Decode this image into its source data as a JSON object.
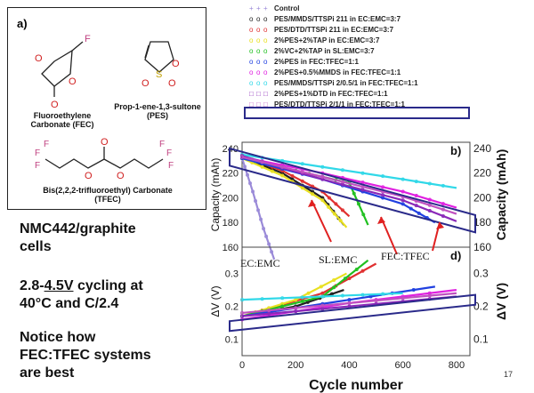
{
  "panel_a": {
    "label": "a)",
    "molecules": [
      {
        "name": "Fluoroethylene Carbonate (FEC)",
        "line1": "Fluoroethylene",
        "line2": "Carbonate (FEC)"
      },
      {
        "name": "Prop-1-ene-1,3-sultone (PES)",
        "line1": "Prop-1-ene-1,3-sultone",
        "line2": "(PES)"
      },
      {
        "name": "Bis(2,2,2-trifluoroethyl) Carbonate (TFEC)",
        "line1": "Bis(2,2,2-trifluoroethyl) Carbonate",
        "line2": "(TFEC)"
      }
    ],
    "atoms": {
      "F": "F",
      "O": "O",
      "S": "S"
    }
  },
  "bullets": {
    "cells_1": "NMC442/graphite",
    "cells_2": "cells",
    "cycling_prefix": "2.8-",
    "cycling_voltage": "4.5V",
    "cycling_suffix": " cycling at",
    "cycling_2": "40°C and C/2.4",
    "notice_1": "Notice how",
    "notice_2": "FEC:TFEC systems",
    "notice_3": "are best"
  },
  "slide_number": "17",
  "chart_data": [
    {
      "type": "line",
      "panel_label": "b)",
      "ylabel_left": "Capacity (mAh)",
      "ylabel_right": "Capacity (mAh)",
      "xlim": [
        0,
        850
      ],
      "ylim": [
        160,
        245
      ],
      "x_ticks": [
        0,
        200,
        400,
        600,
        800
      ],
      "y_ticks": [
        160,
        180,
        200,
        220,
        240
      ],
      "series": [
        {
          "name": "Control",
          "color": "#9a8ad8",
          "x": [
            0,
            40,
            80,
            120
          ],
          "values": [
            232,
            205,
            175,
            150
          ]
        },
        {
          "name": "PES/MMDS/TTSPi 211 in EC:EMC=3:7",
          "color": "#222222",
          "x": [
            0,
            150,
            300,
            380
          ],
          "values": [
            233,
            220,
            200,
            178
          ]
        },
        {
          "name": "PES/DTD/TTSPi 211 in EC:EMC=3:7",
          "color": "#e03030",
          "x": [
            0,
            150,
            300,
            400
          ],
          "values": [
            234,
            222,
            205,
            185
          ]
        },
        {
          "name": "2%PES+2%TAP in EC:EMC=3:7",
          "color": "#e8e020",
          "x": [
            0,
            150,
            300,
            390
          ],
          "values": [
            232,
            218,
            198,
            176
          ]
        },
        {
          "name": "2%VC+2%TAP in SL:EMC=3:7",
          "color": "#20c020",
          "x": [
            0,
            200,
            400,
            470
          ],
          "values": [
            232,
            222,
            212,
            178
          ]
        },
        {
          "name": "2%PES in FEC:TFEC=1:1",
          "color": "#2040e0",
          "x": [
            0,
            300,
            600,
            720
          ],
          "values": [
            232,
            215,
            195,
            180
          ]
        },
        {
          "name": "2%PES+0.5%MMDS in FEC:TFEC=1:1",
          "color": "#e020e0",
          "x": [
            0,
            300,
            600,
            800
          ],
          "values": [
            233,
            220,
            205,
            192
          ]
        },
        {
          "name": "PES/MMDS/TTSPi 2/0.5/1 in FEC:TFEC=1:1",
          "color": "#30d8e8",
          "x": [
            0,
            300,
            600,
            800
          ],
          "values": [
            235,
            225,
            215,
            208
          ]
        },
        {
          "name": "2%PES+1%DTD in FEC:TFEC=1:1",
          "color": "#8a28b8",
          "x": [
            0,
            300,
            600,
            800
          ],
          "values": [
            234,
            215,
            198,
            181
          ]
        },
        {
          "name": "PES/DTD/TTSPi 2/1/1 in FEC:TFEC=1:1",
          "color": "#c050c0",
          "x": [
            0,
            300,
            600,
            800
          ],
          "values": [
            233,
            217,
            201,
            187
          ]
        }
      ]
    },
    {
      "type": "line",
      "panel_label": "d)",
      "xlabel": "Cycle number",
      "ylabel_left": "ΔV (V)",
      "ylabel_right": "ΔV (V)",
      "xlim": [
        0,
        850
      ],
      "ylim": [
        0.05,
        0.38
      ],
      "x_ticks": [
        0,
        200,
        400,
        600,
        800
      ],
      "y_ticks_left": [
        0.1,
        0.2,
        0.3
      ],
      "y_ticks_right": [
        0.1,
        0.2,
        0.3
      ],
      "annotations": [
        "EC:EMC",
        "SL:EMC",
        "FEC:TFEC"
      ],
      "series": [
        {
          "name": "PES/MMDS/TTSPi 211 in EC:EMC=3:7",
          "color": "#222222",
          "x": [
            0,
            200,
            380
          ],
          "values": [
            0.17,
            0.2,
            0.25
          ]
        },
        {
          "name": "PES/DTD/TTSPi 211 in EC:EMC=3:7",
          "color": "#e03030",
          "x": [
            0,
            300,
            500
          ],
          "values": [
            0.17,
            0.24,
            0.33
          ]
        },
        {
          "name": "2%PES+2%TAP in EC:EMC=3:7",
          "color": "#e8e020",
          "x": [
            0,
            200,
            390
          ],
          "values": [
            0.17,
            0.22,
            0.3
          ]
        },
        {
          "name": "2%VC+2%TAP in SL:EMC=3:7",
          "color": "#20c020",
          "x": [
            0,
            300,
            470
          ],
          "values": [
            0.17,
            0.23,
            0.34
          ]
        },
        {
          "name": "2%PES in FEC:TFEC=1:1",
          "color": "#2040e0",
          "x": [
            0,
            400,
            720
          ],
          "values": [
            0.17,
            0.22,
            0.26
          ]
        },
        {
          "name": "2%PES+0.5%MMDS in FEC:TFEC=1:1",
          "color": "#e020e0",
          "x": [
            0,
            400,
            800
          ],
          "values": [
            0.16,
            0.21,
            0.25
          ]
        },
        {
          "name": "PES/MMDS/TTSPi 2/0.5/1 in FEC:TFEC=1:1",
          "color": "#30d8e8",
          "x": [
            0,
            300,
            600
          ],
          "values": [
            0.22,
            0.23,
            0.24
          ]
        },
        {
          "name": "2%PES+1%DTD in FEC:TFEC=1:1",
          "color": "#8a28b8",
          "x": [
            0,
            400,
            800
          ],
          "values": [
            0.17,
            0.2,
            0.23
          ]
        },
        {
          "name": "PES/DTD/TTSPi 2/1/1 in FEC:TFEC=1:1",
          "color": "#c050c0",
          "x": [
            0,
            400,
            800
          ],
          "values": [
            0.18,
            0.21,
            0.24
          ]
        }
      ]
    }
  ],
  "legend": [
    {
      "label": "Control",
      "marker": "+",
      "color": "#9a8ad8"
    },
    {
      "label": "PES/MMDS/TTSPi 211 in EC:EMC=3:7",
      "marker": "o",
      "color": "#222222"
    },
    {
      "label": "PES/DTD/TTSPi 211 in EC:EMC=3:7",
      "marker": "o",
      "color": "#e03030"
    },
    {
      "label": "2%PES+2%TAP in EC:EMC=3:7",
      "marker": "o",
      "color": "#e8e020"
    },
    {
      "label": "2%VC+2%TAP in SL:EMC=3:7",
      "marker": "o",
      "color": "#20c020"
    },
    {
      "label": "2%PES in FEC:TFEC=1:1",
      "marker": "o",
      "color": "#2040e0"
    },
    {
      "label": "2%PES+0.5%MMDS in FEC:TFEC=1:1",
      "marker": "o",
      "color": "#e020e0"
    },
    {
      "label": "PES/MMDS/TTSPi 2/0.5/1 in FEC:TFEC=1:1",
      "marker": "o",
      "color": "#30d8e8"
    },
    {
      "label": "2%PES+1%DTD in FEC:TFEC=1:1",
      "marker": "□",
      "color": "#8a28b8"
    },
    {
      "label": "PES/DTD/TTSPi 2/1/1 in FEC:TFEC=1:1",
      "marker": "□",
      "color": "#c050c0"
    }
  ],
  "highlight_color": "#2a2a8a",
  "arrow_color": "#e02020"
}
